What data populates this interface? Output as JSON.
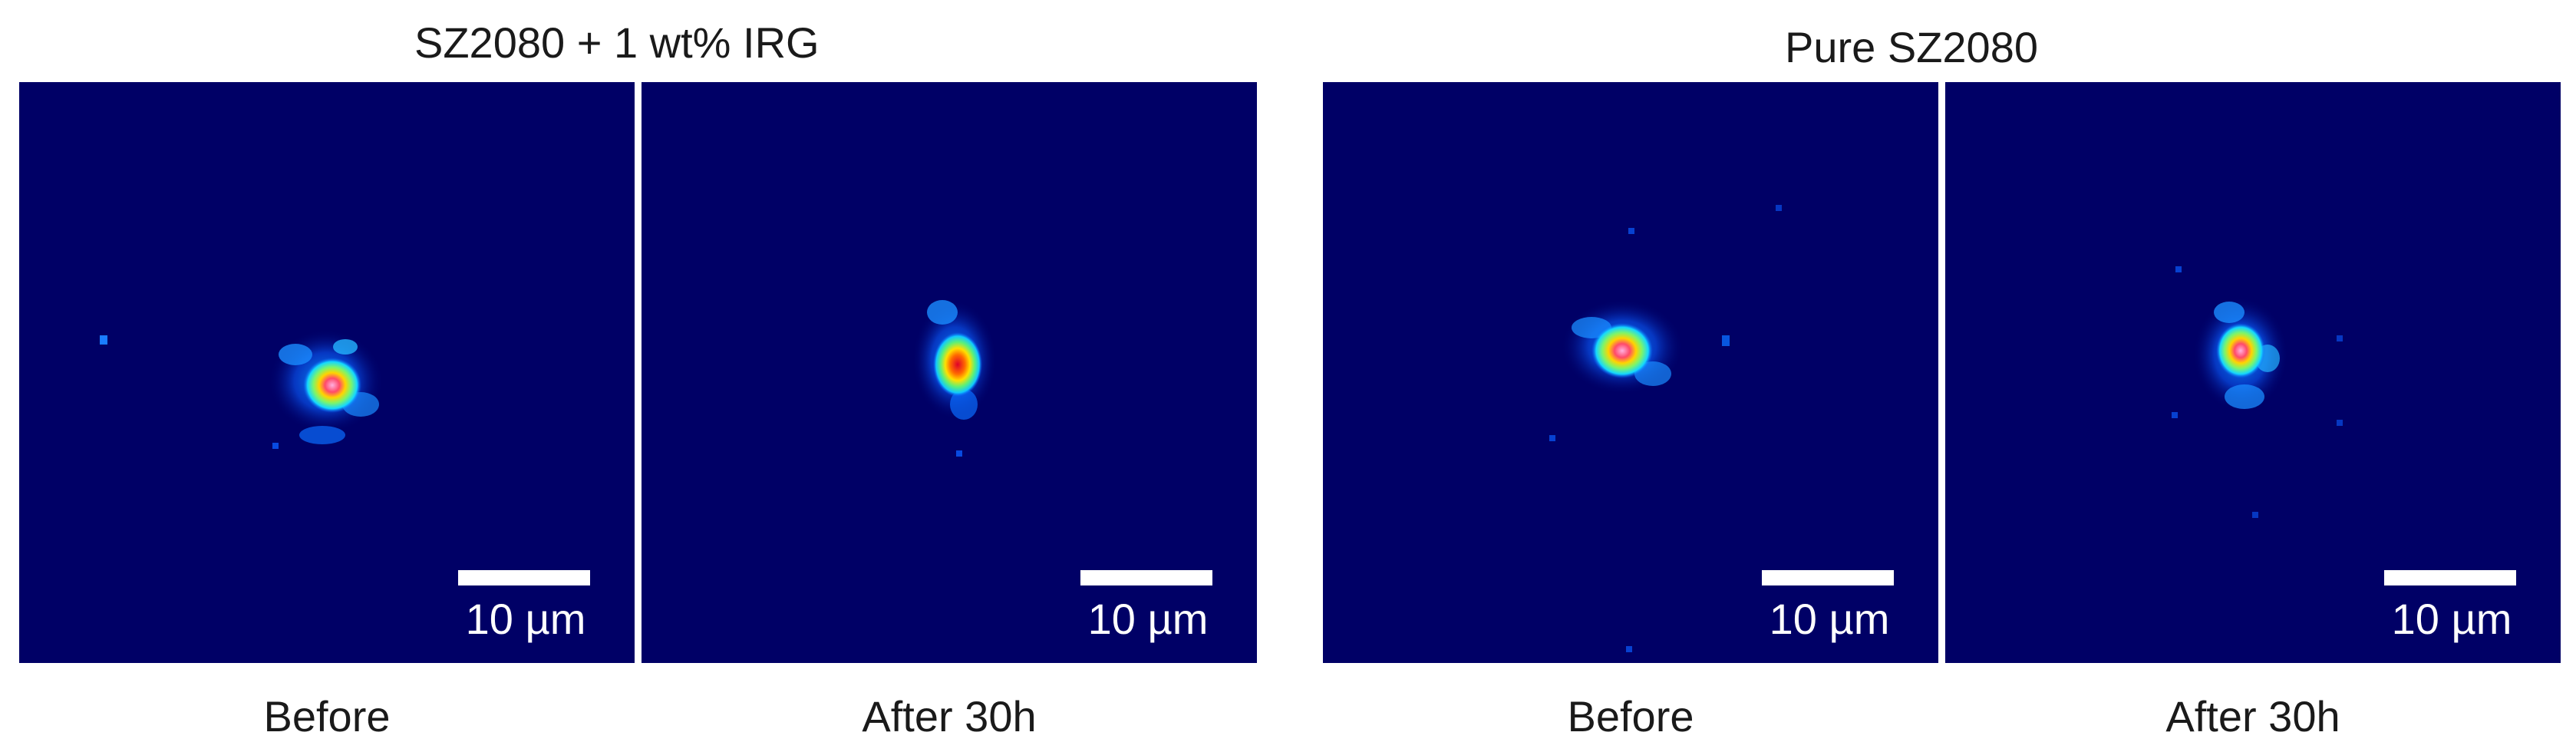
{
  "groups": [
    {
      "title": "SZ2080 + 1 wt% IRG"
    },
    {
      "title": "Pure SZ2080"
    }
  ],
  "panels": [
    {
      "caption": "Before",
      "scale_label": "10 µm"
    },
    {
      "caption": "After 30h",
      "scale_label": "10 µm"
    },
    {
      "caption": "Before",
      "scale_label": "10 µm"
    },
    {
      "caption": "After 30h",
      "scale_label": "10 µm"
    }
  ],
  "colors": {
    "background": "#000066",
    "colormap": [
      "#000066",
      "#0a3cff",
      "#00b4ff",
      "#38f0e0",
      "#ffff00",
      "#ff3000",
      "#ff9bd8"
    ]
  }
}
